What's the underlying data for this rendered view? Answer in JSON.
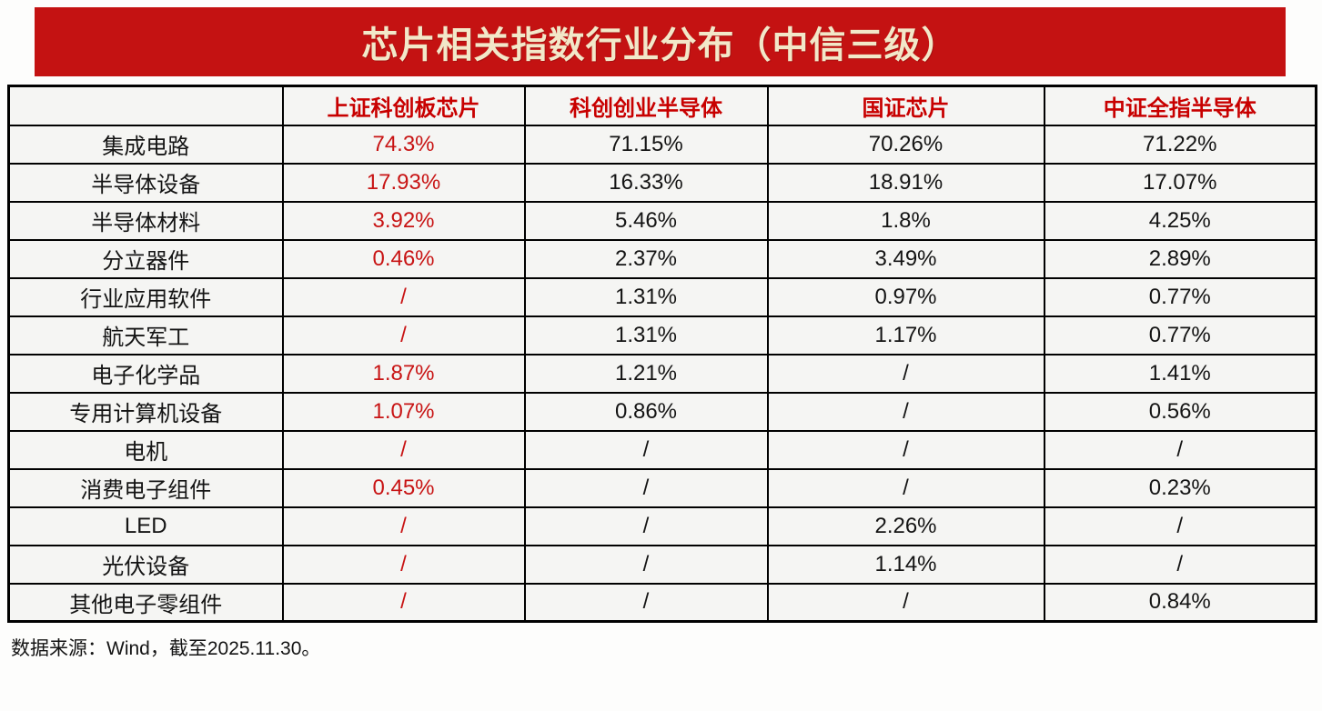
{
  "banner": {
    "title": "芯片相关指数行业分布（中信三级）",
    "background_color": "#c41212",
    "title_color": "#f2e8c9"
  },
  "chart_data": {
    "type": "table",
    "title": "芯片相关指数行业分布（中信三级）",
    "columns": [
      "",
      "上证科创板芯片",
      "科创创业半导体",
      "国证芯片",
      "中证全指半导体"
    ],
    "categories": [
      "集成电路",
      "半导体设备",
      "半导体材料",
      "分立器件",
      "行业应用软件",
      "航天军工",
      "电子化学品",
      "专用计算机设备",
      "电机",
      "消费电子组件",
      "LED",
      "光伏设备",
      "其他电子零组件"
    ],
    "series": [
      {
        "name": "上证科创板芯片",
        "values": [
          "74.3%",
          "17.93%",
          "3.92%",
          "0.46%",
          "/",
          "/",
          "1.87%",
          "1.07%",
          "/",
          "0.45%",
          "/",
          "/",
          "/"
        ]
      },
      {
        "name": "科创创业半导体",
        "values": [
          "71.15%",
          "16.33%",
          "5.46%",
          "2.37%",
          "1.31%",
          "1.31%",
          "1.21%",
          "0.86%",
          "/",
          "/",
          "/",
          "/",
          "/"
        ]
      },
      {
        "name": "国证芯片",
        "values": [
          "70.26%",
          "18.91%",
          "1.8%",
          "3.49%",
          "0.97%",
          "1.17%",
          "/",
          "/",
          "/",
          "/",
          "2.26%",
          "1.14%",
          "/"
        ]
      },
      {
        "name": "中证全指半导体",
        "values": [
          "71.22%",
          "17.07%",
          "4.25%",
          "2.89%",
          "0.77%",
          "0.77%",
          "1.41%",
          "0.56%",
          "/",
          "0.23%",
          "/",
          "/",
          "0.84%"
        ]
      }
    ],
    "missing_marker": "/",
    "highlighted_series": "上证科创板芯片",
    "highlight_color": "#c81414",
    "header_text_color": "#c80000",
    "legend_position": "none",
    "grid": true
  },
  "footer": {
    "source_note": "数据来源：Wind，截至2025.11.30。"
  }
}
